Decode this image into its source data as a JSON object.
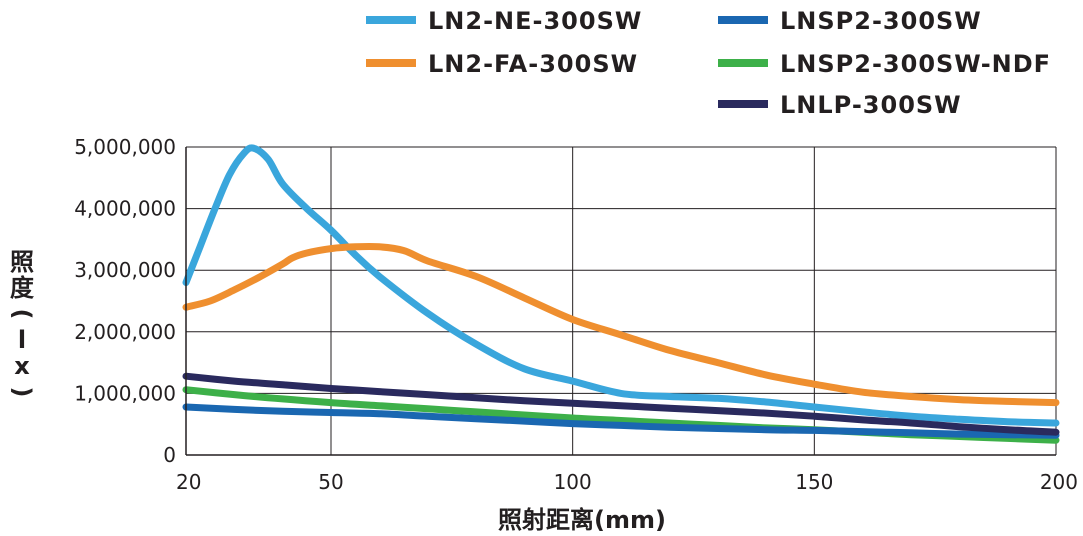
{
  "chart_data": {
    "type": "line",
    "xlabel": "照射距离(mm)",
    "ylabel": "照度(lx)",
    "xlim": [
      20,
      200
    ],
    "ylim": [
      0,
      5000000
    ],
    "x_ticks": [
      20,
      50,
      100,
      150,
      200
    ],
    "y_ticks": [
      0,
      1000000,
      2000000,
      3000000,
      4000000,
      5000000
    ],
    "y_tick_labels": [
      "0",
      "1,000,000",
      "2,000,000",
      "3,000,000",
      "4,000,000",
      "5,000,000"
    ],
    "grid": true,
    "legend_position": "top",
    "series": [
      {
        "name": "LN2-NE-300SW",
        "color": "#3aa6dc",
        "points": [
          [
            20,
            2800000
          ],
          [
            23,
            3400000
          ],
          [
            26,
            4000000
          ],
          [
            29,
            4550000
          ],
          [
            32,
            4900000
          ],
          [
            34,
            4980000
          ],
          [
            37,
            4800000
          ],
          [
            40,
            4400000
          ],
          [
            45,
            4000000
          ],
          [
            50,
            3650000
          ],
          [
            55,
            3250000
          ],
          [
            60,
            2900000
          ],
          [
            70,
            2300000
          ],
          [
            80,
            1800000
          ],
          [
            90,
            1400000
          ],
          [
            100,
            1200000
          ],
          [
            110,
            1000000
          ],
          [
            120,
            950000
          ],
          [
            130,
            920000
          ],
          [
            140,
            860000
          ],
          [
            150,
            780000
          ],
          [
            160,
            700000
          ],
          [
            170,
            630000
          ],
          [
            180,
            580000
          ],
          [
            190,
            540000
          ],
          [
            200,
            520000
          ]
        ]
      },
      {
        "name": "LN2-FA-300SW",
        "color": "#ef8f2f",
        "points": [
          [
            20,
            2400000
          ],
          [
            25,
            2500000
          ],
          [
            30,
            2680000
          ],
          [
            35,
            2880000
          ],
          [
            40,
            3100000
          ],
          [
            42,
            3200000
          ],
          [
            45,
            3280000
          ],
          [
            50,
            3350000
          ],
          [
            55,
            3380000
          ],
          [
            60,
            3380000
          ],
          [
            65,
            3320000
          ],
          [
            70,
            3150000
          ],
          [
            80,
            2900000
          ],
          [
            90,
            2550000
          ],
          [
            100,
            2200000
          ],
          [
            110,
            1950000
          ],
          [
            120,
            1700000
          ],
          [
            130,
            1500000
          ],
          [
            140,
            1300000
          ],
          [
            150,
            1150000
          ],
          [
            160,
            1020000
          ],
          [
            170,
            950000
          ],
          [
            180,
            900000
          ],
          [
            190,
            870000
          ],
          [
            200,
            850000
          ]
        ]
      },
      {
        "name": "LNSP2-300SW",
        "color": "#1a67b1",
        "points": [
          [
            20,
            780000
          ],
          [
            30,
            740000
          ],
          [
            40,
            710000
          ],
          [
            50,
            690000
          ],
          [
            60,
            670000
          ],
          [
            70,
            630000
          ],
          [
            80,
            590000
          ],
          [
            90,
            550000
          ],
          [
            100,
            510000
          ],
          [
            110,
            480000
          ],
          [
            120,
            450000
          ],
          [
            130,
            430000
          ],
          [
            140,
            410000
          ],
          [
            150,
            400000
          ],
          [
            160,
            380000
          ],
          [
            170,
            360000
          ],
          [
            180,
            340000
          ],
          [
            190,
            330000
          ],
          [
            200,
            320000
          ]
        ]
      },
      {
        "name": "LNSP2-300SW-NDF",
        "color": "#3db049",
        "points": [
          [
            20,
            1060000
          ],
          [
            30,
            980000
          ],
          [
            40,
            910000
          ],
          [
            50,
            850000
          ],
          [
            60,
            800000
          ],
          [
            70,
            750000
          ],
          [
            80,
            700000
          ],
          [
            90,
            650000
          ],
          [
            100,
            600000
          ],
          [
            110,
            560000
          ],
          [
            120,
            520000
          ],
          [
            130,
            480000
          ],
          [
            140,
            440000
          ],
          [
            150,
            410000
          ],
          [
            160,
            370000
          ],
          [
            170,
            330000
          ],
          [
            180,
            300000
          ],
          [
            190,
            270000
          ],
          [
            200,
            240000
          ]
        ]
      },
      {
        "name": "LNLP-300SW",
        "color": "#2a2a5e",
        "points": [
          [
            20,
            1280000
          ],
          [
            30,
            1200000
          ],
          [
            40,
            1140000
          ],
          [
            50,
            1080000
          ],
          [
            60,
            1030000
          ],
          [
            70,
            980000
          ],
          [
            80,
            930000
          ],
          [
            90,
            880000
          ],
          [
            100,
            840000
          ],
          [
            110,
            800000
          ],
          [
            120,
            760000
          ],
          [
            130,
            720000
          ],
          [
            140,
            680000
          ],
          [
            150,
            630000
          ],
          [
            160,
            570000
          ],
          [
            170,
            520000
          ],
          [
            180,
            460000
          ],
          [
            190,
            410000
          ],
          [
            200,
            370000
          ]
        ]
      }
    ]
  }
}
